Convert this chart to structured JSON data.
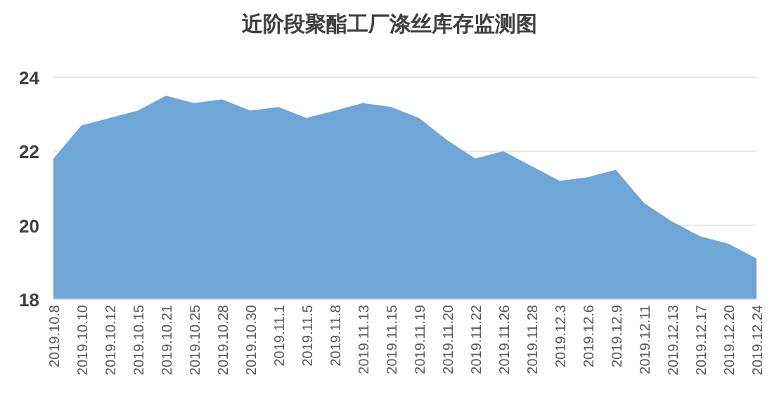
{
  "chart_data": {
    "type": "area",
    "title": "近阶段聚酯工厂涤丝库存监测图",
    "categories": [
      "2019.10.8",
      "2019.10.10",
      "2019.10.12",
      "2019.10.15",
      "2019.10.21",
      "2019.10.25",
      "2019.10.28",
      "2019.10.30",
      "2019.11.1",
      "2019.11.5",
      "2019.11.8",
      "2019.11.13",
      "2019.11.15",
      "2019.11.19",
      "2019.11.20",
      "2019.11.22",
      "2019.11.26",
      "2019.11.28",
      "2019.12.3",
      "2019.12.6",
      "2019.12.9",
      "2019.12.11",
      "2019.12.13",
      "2019.12.17",
      "2019.12.20",
      "2019.12.24"
    ],
    "series": [
      {
        "color": "#6fa5d7",
        "values": [
          21.8,
          22.7,
          22.9,
          23.1,
          23.5,
          23.3,
          23.4,
          23.1,
          23.2,
          22.9,
          23.1,
          23.3,
          23.2,
          22.9,
          22.3,
          21.8,
          22.0,
          21.6,
          21.2,
          21.3,
          21.5,
          20.6,
          20.1,
          19.7,
          19.5,
          19.1
        ]
      }
    ],
    "ylim": [
      18,
      24
    ],
    "yticks": [
      18,
      20,
      22,
      24
    ],
    "grid": "y"
  }
}
